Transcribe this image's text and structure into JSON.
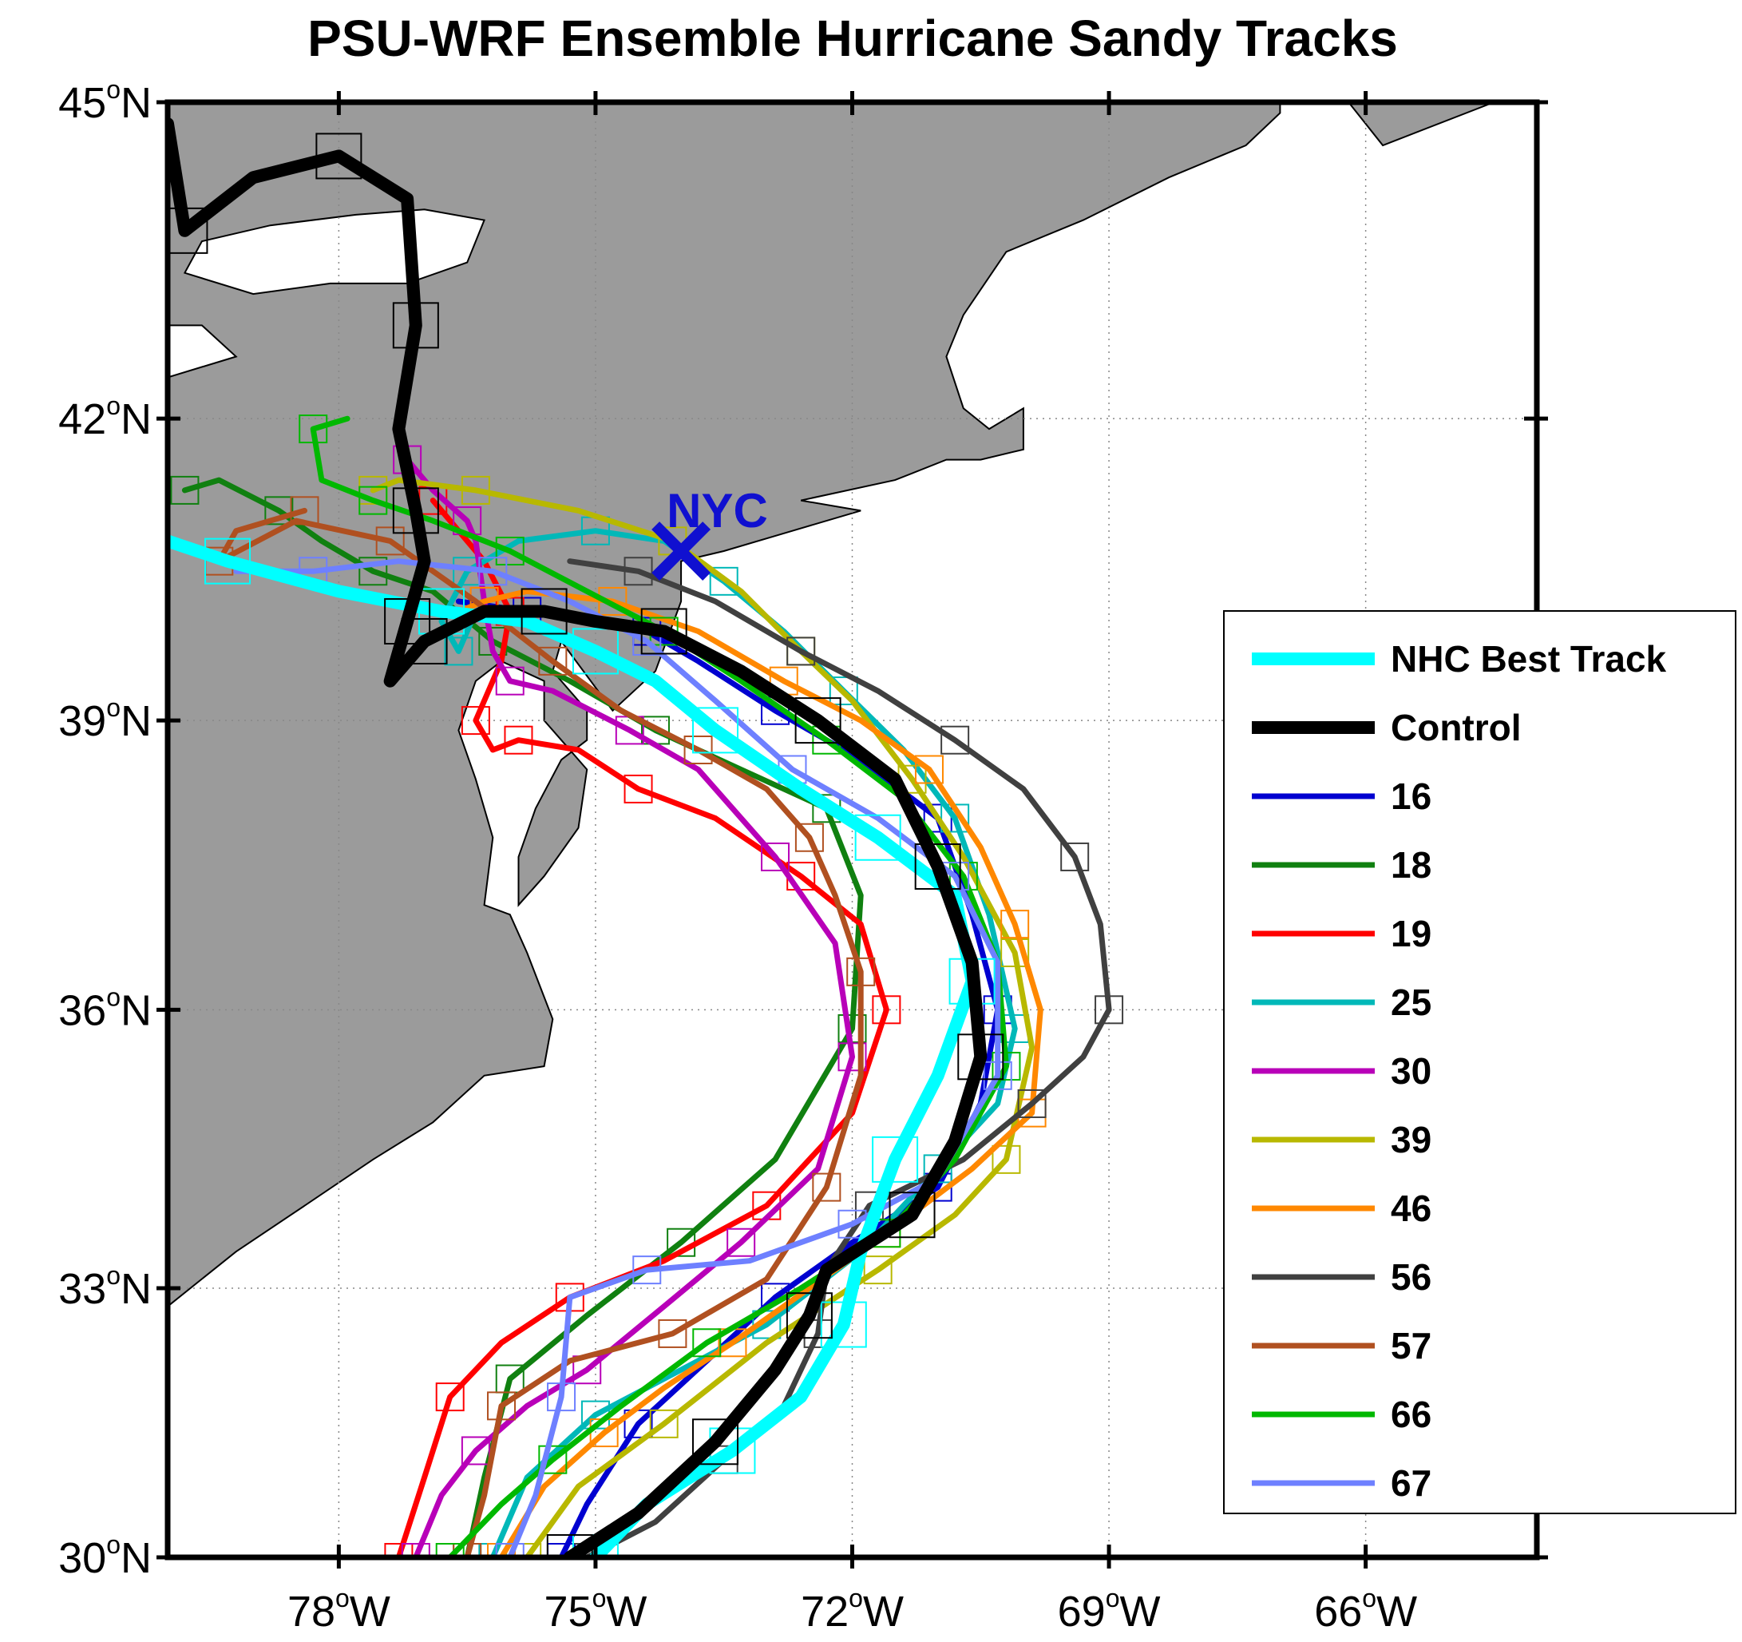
{
  "title": "PSU-WRF Ensemble Hurricane Sandy Tracks",
  "map": {
    "lon_range": [
      -80.0,
      -64.0
    ],
    "lat_range": [
      30.0,
      45.0
    ],
    "projection": "mercator",
    "gridlines": true,
    "land_color": "#9b9b9b",
    "water_color": "#ffffff",
    "lon_ticks": [
      {
        "value": -78,
        "deg": "78",
        "hemi": "W"
      },
      {
        "value": -75,
        "deg": "75",
        "hemi": "W"
      },
      {
        "value": -72,
        "deg": "72",
        "hemi": "W"
      },
      {
        "value": -69,
        "deg": "69",
        "hemi": "W"
      },
      {
        "value": -66,
        "deg": "66",
        "hemi": "W"
      }
    ],
    "lat_ticks": [
      {
        "value": 30,
        "deg": "30",
        "hemi": "N"
      },
      {
        "value": 33,
        "deg": "33",
        "hemi": "N"
      },
      {
        "value": 36,
        "deg": "36",
        "hemi": "N"
      },
      {
        "value": 39,
        "deg": "39",
        "hemi": "N"
      },
      {
        "value": 42,
        "deg": "42",
        "hemi": "N"
      },
      {
        "value": 45,
        "deg": "45",
        "hemi": "N"
      }
    ],
    "degree_symbol": "o",
    "land": [
      [
        [
          -80,
          43.9
        ],
        [
          -78.6,
          43.8
        ],
        [
          -77.6,
          44.3
        ],
        [
          -76.4,
          44.1
        ],
        [
          -75.4,
          45.0
        ],
        [
          -80,
          45.0
        ]
      ],
      [
        [
          -80,
          32.8
        ],
        [
          -79.2,
          33.4
        ],
        [
          -78.4,
          33.9
        ],
        [
          -77.6,
          34.4
        ],
        [
          -76.9,
          34.8
        ],
        [
          -76.3,
          35.3
        ],
        [
          -75.6,
          35.4
        ],
        [
          -75.5,
          35.9
        ],
        [
          -75.8,
          36.6
        ],
        [
          -76.0,
          37.0
        ],
        [
          -76.3,
          37.1
        ],
        [
          -76.2,
          37.8
        ],
        [
          -76.4,
          38.4
        ],
        [
          -76.6,
          38.9
        ],
        [
          -76.4,
          39.4
        ],
        [
          -76.1,
          39.6
        ],
        [
          -75.6,
          39.4
        ],
        [
          -75.6,
          39.0
        ],
        [
          -75.4,
          38.8
        ],
        [
          -75.1,
          38.5
        ],
        [
          -75.2,
          37.9
        ],
        [
          -75.6,
          37.4
        ],
        [
          -75.9,
          37.1
        ],
        [
          -75.9,
          37.6
        ],
        [
          -75.7,
          38.1
        ],
        [
          -75.4,
          38.6
        ],
        [
          -75.1,
          38.8
        ],
        [
          -75.1,
          39.1
        ],
        [
          -75.5,
          39.5
        ],
        [
          -75.4,
          39.8
        ],
        [
          -74.8,
          39.1
        ],
        [
          -74.3,
          39.5
        ],
        [
          -74.0,
          40.2
        ],
        [
          -74.0,
          40.6
        ],
        [
          -73.5,
          40.7
        ],
        [
          -72.7,
          40.9
        ],
        [
          -71.9,
          41.1
        ],
        [
          -72.6,
          41.2
        ],
        [
          -71.5,
          41.4
        ],
        [
          -70.9,
          41.6
        ],
        [
          -70.5,
          41.6
        ],
        [
          -70.0,
          41.7
        ],
        [
          -70.0,
          42.1
        ],
        [
          -70.4,
          41.9
        ],
        [
          -70.7,
          42.1
        ],
        [
          -70.9,
          42.6
        ],
        [
          -70.7,
          43.0
        ],
        [
          -70.2,
          43.6
        ],
        [
          -69.3,
          43.9
        ],
        [
          -68.3,
          44.3
        ],
        [
          -67.4,
          44.6
        ],
        [
          -67.0,
          44.9
        ],
        [
          -67.0,
          45.0
        ],
        [
          -80,
          45.0
        ]
      ],
      [
        [
          -66.2,
          45.0
        ],
        [
          -65.8,
          44.6
        ],
        [
          -64.5,
          45.0
        ]
      ]
    ],
    "lakes": [
      [
        [
          -79.8,
          43.4
        ],
        [
          -79.0,
          43.2
        ],
        [
          -78.1,
          43.3
        ],
        [
          -77.2,
          43.3
        ],
        [
          -76.5,
          43.5
        ],
        [
          -76.3,
          43.9
        ],
        [
          -77.0,
          44.0
        ],
        [
          -77.8,
          43.95
        ],
        [
          -78.8,
          43.85
        ],
        [
          -79.6,
          43.7
        ]
      ],
      [
        [
          -80,
          42.4
        ],
        [
          -79.2,
          42.6
        ],
        [
          -79.6,
          42.9
        ],
        [
          -80,
          42.9
        ]
      ]
    ],
    "city": {
      "label": "NYC",
      "lon": -74.0,
      "lat": 40.7,
      "color": "#1010d0"
    }
  },
  "legend": {
    "position": "right",
    "items": [
      {
        "label": "NHC Best Track",
        "color": "#00ffff",
        "width": "thick"
      },
      {
        "label": "Control",
        "color": "#000000",
        "width": "thick"
      },
      {
        "label": "16",
        "color": "#0000d0"
      },
      {
        "label": "18",
        "color": "#108010"
      },
      {
        "label": "19",
        "color": "#ff0000"
      },
      {
        "label": "25",
        "color": "#00b8b8"
      },
      {
        "label": "30",
        "color": "#b800b8"
      },
      {
        "label": "39",
        "color": "#b8b800"
      },
      {
        "label": "46",
        "color": "#ff8800"
      },
      {
        "label": "56",
        "color": "#404040"
      },
      {
        "label": "57",
        "color": "#b05020"
      },
      {
        "label": "66",
        "color": "#00b800"
      },
      {
        "label": "67",
        "color": "#6e80ff"
      }
    ]
  },
  "chart_data": {
    "type": "line",
    "title": "PSU-WRF Ensemble Hurricane Sandy Tracks",
    "xlabel": "",
    "ylabel": "",
    "xlim": [
      -80.0,
      -64.0
    ],
    "ylim": [
      30.0,
      45.0
    ],
    "x_unit": "degrees longitude",
    "y_unit": "degrees latitude",
    "grid": true,
    "legend_location": "right",
    "series": [
      {
        "name": "NHC Best Track",
        "color": "#00ffff",
        "thick": true,
        "x": [
          -75.0,
          -74.4,
          -73.4,
          -72.6,
          -72.1,
          -71.9,
          -71.5,
          -71.0,
          -70.6,
          -70.8,
          -71.7,
          -72.6,
          -73.6,
          -74.3,
          -75.0,
          -75.8,
          -76.8,
          -78.0,
          -79.3,
          -80.0
        ],
        "y": [
          30.0,
          30.6,
          31.2,
          31.8,
          32.6,
          33.4,
          34.4,
          35.3,
          36.3,
          37.2,
          37.8,
          38.3,
          38.9,
          39.4,
          39.7,
          40.0,
          40.1,
          40.3,
          40.6,
          40.8
        ]
      },
      {
        "name": "Control",
        "color": "#000000",
        "thick": true,
        "x": [
          -75.3,
          -74.5,
          -73.6,
          -72.9,
          -72.5,
          -72.3,
          -71.3,
          -70.8,
          -70.5,
          -70.6,
          -71.0,
          -71.5,
          -72.4,
          -73.3,
          -74.2,
          -75.0,
          -75.6,
          -76.3,
          -77.0,
          -77.4,
          -77.2,
          -77.0,
          -77.1,
          -77.3,
          -77.1,
          -77.2,
          -78.0,
          -79.0,
          -79.8,
          -80.0
        ],
        "y": [
          30.0,
          30.5,
          31.3,
          32.1,
          32.7,
          33.2,
          33.8,
          34.6,
          35.5,
          36.5,
          37.5,
          38.4,
          39.0,
          39.5,
          39.9,
          40.0,
          40.1,
          40.1,
          39.8,
          39.4,
          40.0,
          40.6,
          41.1,
          41.9,
          42.9,
          44.1,
          44.5,
          44.3,
          43.8,
          44.8
        ]
      },
      {
        "name": "16",
        "color": "#0000d0",
        "x": [
          -75.4,
          -75.1,
          -74.5,
          -73.7,
          -72.9,
          -72.0,
          -71.0,
          -70.5,
          -70.3,
          -70.6,
          -71.0,
          -71.9,
          -72.9,
          -73.8,
          -74.4,
          -75.0,
          -75.8,
          -76.6
        ],
        "y": [
          30.0,
          30.6,
          31.5,
          32.2,
          32.9,
          33.5,
          34.1,
          35.0,
          36.0,
          37.0,
          38.0,
          38.6,
          39.1,
          39.6,
          39.9,
          40.0,
          40.1,
          40.2
        ]
      },
      {
        "name": "18",
        "color": "#108010",
        "x": [
          -76.5,
          -76.3,
          -76.0,
          -75.1,
          -74.0,
          -72.9,
          -72.0,
          -71.9,
          -72.3,
          -73.3,
          -74.3,
          -75.3,
          -76.2,
          -76.9,
          -77.6,
          -78.2,
          -78.7,
          -79.4,
          -79.8
        ],
        "y": [
          30.0,
          30.9,
          32.0,
          32.7,
          33.5,
          34.4,
          35.8,
          37.2,
          38.1,
          38.5,
          38.9,
          39.4,
          39.8,
          40.3,
          40.5,
          40.8,
          41.1,
          41.4,
          41.3
        ]
      },
      {
        "name": "19",
        "color": "#ff0000",
        "x": [
          -77.3,
          -77.0,
          -76.7,
          -76.1,
          -75.3,
          -74.2,
          -73.0,
          -72.0,
          -71.6,
          -71.9,
          -72.6,
          -73.6,
          -74.5,
          -75.2,
          -75.9,
          -76.2,
          -76.4,
          -76.1,
          -76.0,
          -76.3,
          -76.9
        ],
        "y": [
          30.0,
          30.9,
          31.8,
          32.4,
          32.9,
          33.3,
          33.9,
          34.9,
          36.0,
          36.9,
          37.4,
          38.0,
          38.3,
          38.7,
          38.8,
          38.7,
          39.0,
          39.6,
          40.1,
          40.6,
          41.2
        ]
      },
      {
        "name": "25",
        "color": "#00b8b8",
        "x": [
          -76.2,
          -75.8,
          -75.0,
          -74.0,
          -73.0,
          -71.9,
          -71.0,
          -70.3,
          -70.1,
          -70.4,
          -70.8,
          -71.4,
          -72.1,
          -72.8,
          -73.5,
          -74.2,
          -75.0,
          -75.9,
          -76.5,
          -76.8,
          -76.6,
          -76.4
        ],
        "y": [
          30.0,
          30.9,
          31.6,
          32.1,
          32.6,
          33.4,
          34.3,
          35.0,
          35.8,
          37.0,
          38.0,
          38.7,
          39.3,
          39.9,
          40.4,
          40.8,
          40.9,
          40.8,
          40.5,
          40.0,
          39.7,
          40.1
        ]
      },
      {
        "name": "30",
        "color": "#b800b8",
        "x": [
          -77.1,
          -76.8,
          -76.4,
          -75.8,
          -75.1,
          -74.2,
          -73.3,
          -72.4,
          -72.0,
          -72.2,
          -72.9,
          -73.8,
          -74.6,
          -75.5,
          -76.0,
          -76.2,
          -76.3,
          -76.4,
          -76.5,
          -76.9,
          -77.2
        ],
        "y": [
          30.0,
          30.7,
          31.2,
          31.7,
          32.1,
          32.8,
          33.5,
          34.3,
          35.5,
          36.7,
          37.6,
          38.5,
          38.9,
          39.3,
          39.4,
          39.7,
          40.2,
          40.8,
          41.0,
          41.3,
          41.6
        ]
      },
      {
        "name": "39",
        "color": "#b8b800",
        "x": [
          -75.8,
          -75.2,
          -74.2,
          -73.0,
          -71.7,
          -70.8,
          -70.2,
          -69.9,
          -70.1,
          -70.7,
          -71.3,
          -72.0,
          -72.6,
          -73.3,
          -74.1,
          -75.2,
          -76.4,
          -77.3,
          -77.6
        ],
        "y": [
          30.0,
          30.8,
          31.5,
          32.4,
          33.2,
          33.8,
          34.4,
          35.6,
          36.6,
          37.6,
          38.4,
          39.2,
          39.7,
          40.3,
          40.8,
          41.1,
          41.3,
          41.4,
          41.3
        ]
      },
      {
        "name": "46",
        "color": "#ff8800",
        "x": [
          -76.1,
          -75.6,
          -74.9,
          -74.2,
          -73.4,
          -72.5,
          -71.6,
          -70.6,
          -69.9,
          -69.8,
          -70.1,
          -70.5,
          -71.1,
          -71.9,
          -72.8,
          -73.8,
          -74.8,
          -75.8,
          -76.3,
          -76.6
        ],
        "y": [
          30.0,
          30.8,
          31.4,
          31.9,
          32.4,
          33.0,
          33.6,
          34.3,
          34.9,
          36.0,
          36.9,
          37.7,
          38.5,
          39.0,
          39.4,
          39.9,
          40.2,
          40.3,
          40.2,
          40.1
        ]
      },
      {
        "name": "56",
        "color": "#404040",
        "x": [
          -75.1,
          -74.3,
          -73.5,
          -72.8,
          -72.4,
          -72.3,
          -71.8,
          -70.7,
          -69.9,
          -69.3,
          -69.0,
          -69.1,
          -69.4,
          -70.0,
          -70.8,
          -71.7,
          -72.6,
          -73.6,
          -74.5,
          -75.3
        ],
        "y": [
          30.0,
          30.4,
          31.1,
          31.7,
          32.5,
          33.2,
          33.9,
          34.4,
          35.0,
          35.5,
          36.0,
          36.9,
          37.6,
          38.3,
          38.8,
          39.3,
          39.7,
          40.2,
          40.5,
          40.6
        ]
      },
      {
        "name": "57",
        "color": "#b05020",
        "x": [
          -76.5,
          -76.3,
          -76.1,
          -75.3,
          -74.1,
          -73.0,
          -72.3,
          -71.9,
          -71.9,
          -72.2,
          -72.5,
          -73.0,
          -73.8,
          -74.7,
          -75.5,
          -76.4,
          -77.4,
          -78.5,
          -79.4,
          -79.2,
          -78.4
        ],
        "y": [
          30.0,
          30.7,
          31.7,
          32.2,
          32.5,
          33.1,
          34.1,
          35.3,
          36.4,
          37.2,
          37.8,
          38.3,
          38.7,
          39.1,
          39.6,
          40.2,
          40.8,
          41.0,
          40.6,
          40.9,
          41.1
        ]
      },
      {
        "name": "66",
        "color": "#00b800",
        "x": [
          -76.7,
          -76.1,
          -75.5,
          -74.7,
          -73.7,
          -72.6,
          -71.6,
          -70.8,
          -70.2,
          -70.3,
          -70.7,
          -71.4,
          -72.3,
          -73.3,
          -74.2,
          -75.1,
          -76.0,
          -76.9,
          -77.6,
          -78.2,
          -78.3,
          -77.9
        ],
        "y": [
          30.0,
          30.6,
          31.1,
          31.7,
          32.4,
          33.0,
          33.6,
          34.4,
          35.4,
          36.5,
          37.4,
          38.2,
          38.8,
          39.4,
          39.9,
          40.3,
          40.7,
          41.0,
          41.2,
          41.4,
          41.9,
          42.0
        ]
      },
      {
        "name": "67",
        "color": "#6e80ff",
        "x": [
          -76.0,
          -75.7,
          -75.4,
          -75.3,
          -74.4,
          -73.2,
          -72.0,
          -71.0,
          -70.3,
          -70.3,
          -70.8,
          -71.7,
          -72.7,
          -73.6,
          -74.4,
          -75.3,
          -76.2,
          -77.3,
          -78.3,
          -79.2
        ],
        "y": [
          30.0,
          30.7,
          31.8,
          32.9,
          33.2,
          33.3,
          33.7,
          34.2,
          35.3,
          36.5,
          37.4,
          38.0,
          38.5,
          39.2,
          39.8,
          40.2,
          40.5,
          40.6,
          40.5,
          40.5
        ]
      }
    ]
  }
}
